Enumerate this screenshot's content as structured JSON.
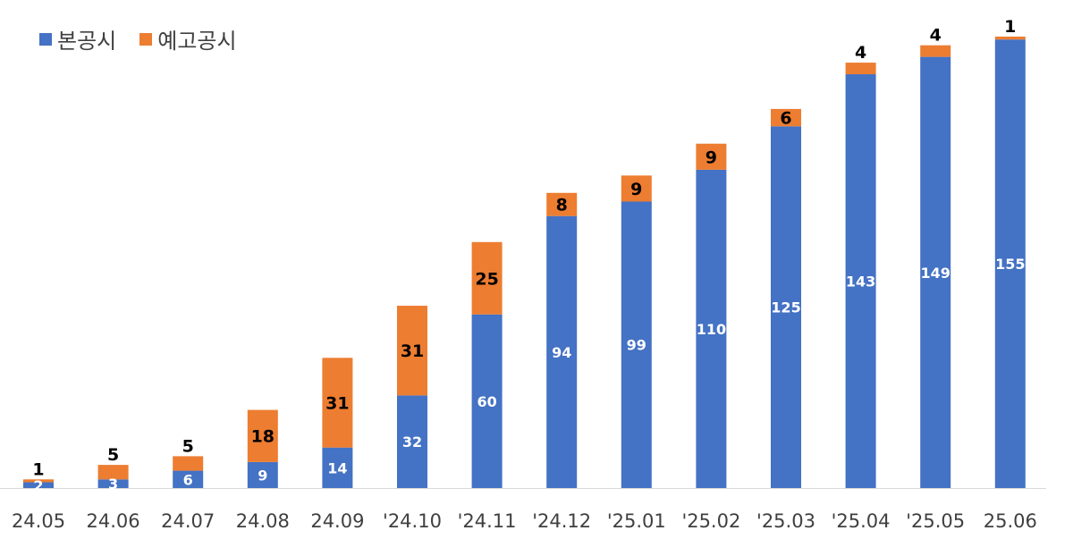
{
  "chart_data": {
    "type": "bar",
    "stacked": true,
    "categories": [
      "24.05",
      "24.06",
      "24.07",
      "24.08",
      "24.09",
      "'24.10",
      "'24.11",
      "'24.12",
      "'25.01",
      "'25.02",
      "'25.03",
      "'25.04",
      "'25.05",
      "25.06"
    ],
    "series": [
      {
        "name": "본공시",
        "color": "#4472C4",
        "values": [
          2,
          3,
          6,
          9,
          14,
          32,
          60,
          94,
          99,
          110,
          125,
          143,
          149,
          155
        ]
      },
      {
        "name": "예고공시",
        "color": "#ED7D31",
        "values": [
          1,
          5,
          5,
          18,
          31,
          31,
          25,
          8,
          9,
          9,
          6,
          4,
          4,
          1
        ]
      }
    ],
    "ylim": [
      0,
      160
    ],
    "grid": false,
    "legend_position": "top-left"
  }
}
